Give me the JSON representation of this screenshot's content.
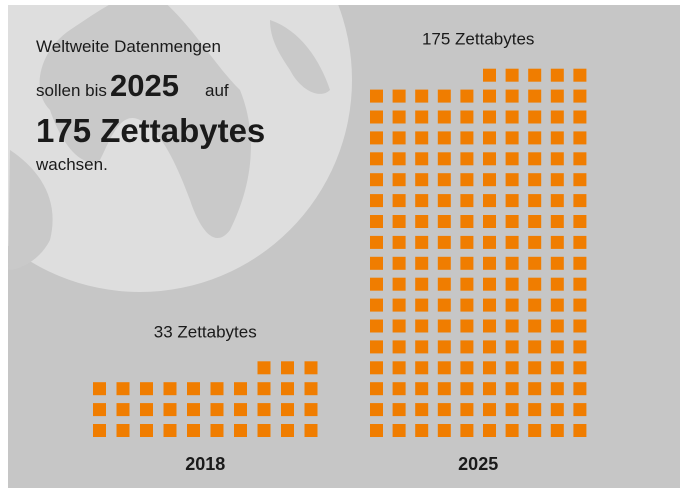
{
  "chart_data": {
    "type": "waffle",
    "annotation": [
      "Weltweite Datenmengen",
      "sollen bis",
      "2025",
      "auf",
      "175 Zettabytes",
      "wachsen."
    ],
    "categories": [
      "2018",
      "2025"
    ],
    "values": [
      33,
      175
    ],
    "value_labels": [
      "33 Zettabytes",
      "175 Zettabytes"
    ],
    "color": "#f07d00"
  }
}
